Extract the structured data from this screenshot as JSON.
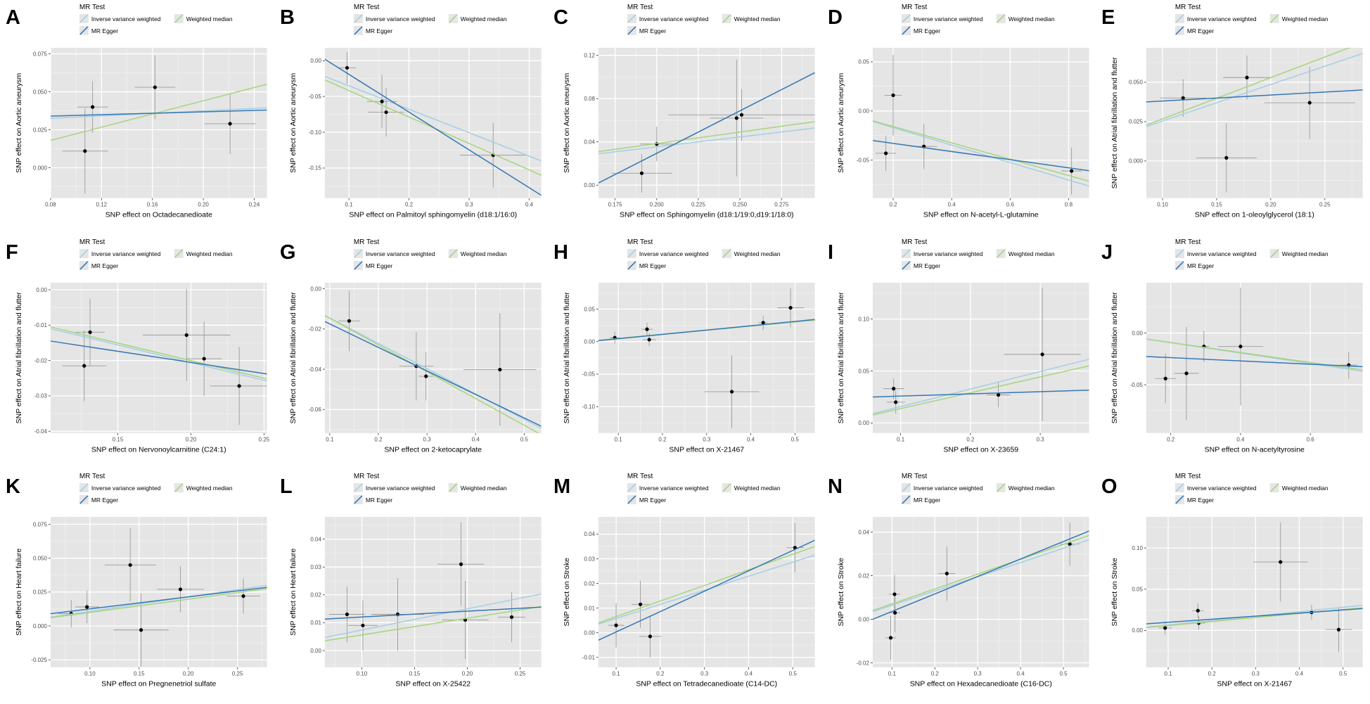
{
  "legend": {
    "title": "MR Test",
    "items": [
      {
        "key": "ivw",
        "label": "Inverse variance weighted"
      },
      {
        "key": "egger",
        "label": "MR Egger"
      },
      {
        "key": "wm",
        "label": "Weighted median"
      }
    ]
  },
  "colors": {
    "ivw": "#a6cee3",
    "egger": "#3377b5",
    "wm": "#a5d57c",
    "point": "#000000",
    "errorbar": "#9a9a9a",
    "panel_bg": "#e5e5e5",
    "grid_major": "#ffffff",
    "grid_minor": "#f2f2f2",
    "tick_text": "#4d4d4d",
    "axis_text": "#000000",
    "legend_key_bg": "#e5e5e5"
  },
  "chart_data": [
    {
      "panel": "A",
      "type": "scatter",
      "xlabel": "SNP effect on Octadecanedioate",
      "ylabel": "SNP effect on Aortic aneurysm",
      "xlim": [
        0.08,
        0.25
      ],
      "ylim": [
        -0.02,
        0.079
      ],
      "xticks": [
        "0.08",
        "0.12",
        "0.16",
        "0.20",
        "0.24"
      ],
      "yticks": [
        "0.000",
        "0.025",
        "0.050",
        "0.075"
      ],
      "points": [
        [
          0.107,
          0.011,
          0.018,
          0.028
        ],
        [
          0.113,
          0.04,
          0.012,
          0.017
        ],
        [
          0.162,
          0.053,
          0.016,
          0.021
        ],
        [
          0.221,
          0.029,
          0.02,
          0.02
        ]
      ],
      "lines": {
        "ivw": [
          0.0325,
          0.0395
        ],
        "egger": [
          0.034,
          0.038
        ],
        "wm": [
          0.018,
          0.055
        ]
      }
    },
    {
      "panel": "B",
      "type": "scatter",
      "xlabel": "SNP effect on Palmitoyl sphingomyelin (d18:1/16:0)",
      "ylabel": "SNP effect on Aortic aneurysm",
      "xlim": [
        0.06,
        0.42
      ],
      "ylim": [
        -0.192,
        0.018
      ],
      "xticks": [
        "0.1",
        "0.2",
        "0.3",
        "0.4"
      ],
      "yticks": [
        "0.00",
        "-0.05",
        "-0.10",
        "-0.15"
      ],
      "points": [
        [
          0.097,
          -0.01,
          0.015,
          0.022
        ],
        [
          0.155,
          -0.057,
          0.025,
          0.037
        ],
        [
          0.162,
          -0.072,
          0.03,
          0.034
        ],
        [
          0.34,
          -0.132,
          0.055,
          0.045
        ]
      ],
      "lines": {
        "ivw": [
          -0.022,
          -0.14
        ],
        "egger": [
          0.002,
          -0.188
        ],
        "wm": [
          -0.027,
          -0.16
        ]
      }
    },
    {
      "panel": "C",
      "type": "scatter",
      "xlabel": "SNP effect on Sphingomyelin (d18:1/19:0,d19:1/18:0)",
      "ylabel": "SNP effect on Aortic aneurysm",
      "xlim": [
        0.165,
        0.295
      ],
      "ylim": [
        -0.012,
        0.127
      ],
      "xticks": [
        "0.175",
        "0.200",
        "0.225",
        "0.250",
        "0.275"
      ],
      "yticks": [
        "0.00",
        "0.04",
        "0.08",
        "0.12"
      ],
      "points": [
        [
          0.191,
          0.011,
          0.018,
          0.018
        ],
        [
          0.2,
          0.038,
          0.01,
          0.016
        ],
        [
          0.248,
          0.062,
          0.016,
          0.054
        ],
        [
          0.251,
          0.065,
          0.044,
          0.024
        ]
      ],
      "lines": {
        "ivw": [
          0.029,
          0.0528
        ],
        "egger": [
          0.002,
          0.104
        ],
        "wm": [
          0.031,
          0.0587
        ]
      }
    },
    {
      "panel": "D",
      "type": "scatter",
      "xlabel": "SNP effect on N-acetyl-L-glutamine",
      "ylabel": "SNP effect on Aortic aneurysm",
      "xlim": [
        0.13,
        0.87
      ],
      "ylim": [
        -0.0886,
        0.0643
      ],
      "xticks": [
        "0.2",
        "0.4",
        "0.6",
        "0.8"
      ],
      "yticks": [
        "0.05",
        "0.00",
        "-0.05"
      ],
      "points": [
        [
          0.175,
          -0.043,
          0.035,
          0.018
        ],
        [
          0.2,
          0.016,
          0.03,
          0.041
        ],
        [
          0.305,
          -0.036,
          0.045,
          0.023
        ],
        [
          0.81,
          -0.061,
          0.035,
          0.024
        ]
      ],
      "lines": {
        "ivw": [
          -0.0107,
          -0.0764
        ],
        "egger": [
          -0.03,
          -0.0607
        ],
        "wm": [
          -0.01,
          -0.0714
        ]
      }
    },
    {
      "panel": "E",
      "type": "scatter",
      "xlabel": "SNP effect on 1-oleoylglycerol (18:1)",
      "ylabel": "SNP effect on Atrial fibrillation and flutter",
      "xlim": [
        0.085,
        0.285
      ],
      "ylim": [
        -0.0236,
        0.0719
      ],
      "xticks": [
        "0.10",
        "0.15",
        "0.20",
        "0.25"
      ],
      "yticks": [
        "0.000",
        "0.025",
        "0.050"
      ],
      "points": [
        [
          0.119,
          0.04,
          0.021,
          0.012
        ],
        [
          0.159,
          0.002,
          0.028,
          0.022
        ],
        [
          0.178,
          0.053,
          0.022,
          0.014
        ],
        [
          0.236,
          0.037,
          0.042,
          0.023
        ]
      ],
      "lines": {
        "ivw": [
          0.0219,
          0.0683
        ],
        "egger": [
          0.0375,
          0.0451
        ],
        "wm": [
          0.0228,
          0.0752
        ]
      }
    },
    {
      "panel": "F",
      "type": "scatter",
      "xlabel": "SNP effect on Nervonoylcarnitine (C24:1)",
      "ylabel": "SNP effect on Atrial fibrillation and flutter",
      "xlim": [
        0.104,
        0.252
      ],
      "ylim": [
        -0.0405,
        0.002
      ],
      "xticks": [
        "0.15",
        "0.20",
        "0.25"
      ],
      "yticks": [
        "0.00",
        "-0.01",
        "-0.02",
        "-0.03",
        "-0.04"
      ],
      "points": [
        [
          0.127,
          -0.0215,
          0.015,
          0.01
        ],
        [
          0.131,
          -0.012,
          0.01,
          0.0095
        ],
        [
          0.197,
          -0.0128,
          0.03,
          0.013
        ],
        [
          0.209,
          -0.0195,
          0.012,
          0.0105
        ],
        [
          0.233,
          -0.0272,
          0.02,
          0.011
        ]
      ],
      "lines": {
        "ivw": [
          -0.011,
          -0.0258
        ],
        "egger": [
          -0.0145,
          -0.0238
        ],
        "wm": [
          -0.0105,
          -0.0252
        ]
      }
    },
    {
      "panel": "G",
      "type": "scatter",
      "xlabel": "SNP effect on 2-ketocaprylate",
      "ylabel": "SNP effect on Atrial fibrillation and flutter",
      "xlim": [
        0.09,
        0.535
      ],
      "ylim": [
        -0.0717,
        0.003
      ],
      "xticks": [
        "0.1",
        "0.2",
        "0.3",
        "0.4",
        "0.5"
      ],
      "yticks": [
        "0.00",
        "-0.02",
        "-0.04",
        "-0.06"
      ],
      "points": [
        [
          0.14,
          -0.016,
          0.022,
          0.015
        ],
        [
          0.278,
          -0.0385,
          0.035,
          0.017
        ],
        [
          0.298,
          -0.0435,
          0.015,
          0.012
        ],
        [
          0.45,
          -0.0402,
          0.075,
          0.028
        ]
      ],
      "lines": {
        "ivw": [
          -0.0133,
          -0.0693
        ],
        "egger": [
          -0.0163,
          -0.0683
        ],
        "wm": [
          -0.0133,
          -0.0725
        ]
      }
    },
    {
      "panel": "H",
      "type": "scatter",
      "xlabel": "SNP effect on X-21467",
      "ylabel": "SNP effect on Atrial fibrillation and flutter",
      "xlim": [
        0.055,
        0.545
      ],
      "ylim": [
        -0.1406,
        0.0906
      ],
      "xticks": [
        "0.1",
        "0.2",
        "0.3",
        "0.4",
        "0.5"
      ],
      "yticks": [
        "0.05",
        "0.00",
        "-0.05",
        "-0.10"
      ],
      "points": [
        [
          0.092,
          0.006,
          0.012,
          0.009
        ],
        [
          0.165,
          0.019,
          0.013,
          0.01
        ],
        [
          0.17,
          0.003,
          0.015,
          0.01
        ],
        [
          0.357,
          -0.077,
          0.062,
          0.056
        ],
        [
          0.428,
          0.029,
          0.01,
          0.011
        ],
        [
          0.49,
          0.052,
          0.03,
          0.03
        ]
      ],
      "lines": {
        "ivw": [
          0.002,
          0.0335
        ],
        "egger": [
          0.0015,
          0.034
        ],
        "wm": [
          0.002,
          0.033
        ]
      }
    },
    {
      "panel": "I",
      "type": "scatter",
      "xlabel": "SNP effect on X-23659",
      "ylabel": "SNP effect on Atrial fibrillation and flutter",
      "xlim": [
        0.06,
        0.37
      ],
      "ylim": [
        -0.0097,
        0.135
      ],
      "xticks": [
        "0.1",
        "0.2",
        "0.3"
      ],
      "yticks": [
        "0.00",
        "0.05",
        "0.10"
      ],
      "points": [
        [
          0.09,
          0.033,
          0.015,
          0.01
        ],
        [
          0.093,
          0.02,
          0.013,
          0.011
        ],
        [
          0.24,
          0.027,
          0.017,
          0.012
        ],
        [
          0.303,
          0.066,
          0.055,
          0.064
        ]
      ],
      "lines": {
        "ivw": [
          0.009,
          0.0613
        ],
        "egger": [
          0.025,
          0.0316
        ],
        "wm": [
          0.0077,
          0.055
        ]
      }
    },
    {
      "panel": "J",
      "type": "scatter",
      "xlabel": "SNP effect on N-acetyltyrosine",
      "ylabel": "SNP effect on Atrial fibrillation and flutter",
      "xlim": [
        0.13,
        0.75
      ],
      "ylim": [
        -0.0967,
        0.0487
      ],
      "xticks": [
        "0.2",
        "0.4",
        "0.6"
      ],
      "yticks": [
        "0.00",
        "-0.05"
      ],
      "points": [
        [
          0.185,
          -0.044,
          0.03,
          0.024
        ],
        [
          0.245,
          -0.039,
          0.035,
          0.045
        ],
        [
          0.295,
          -0.013,
          0.015,
          0.015
        ],
        [
          0.4,
          -0.013,
          0.065,
          0.057
        ],
        [
          0.71,
          -0.031,
          0.025,
          0.013
        ]
      ],
      "lines": {
        "ivw": [
          -0.0058,
          -0.037
        ],
        "egger": [
          -0.0227,
          -0.0325
        ],
        "wm": [
          -0.0058,
          -0.0357
        ]
      }
    },
    {
      "panel": "K",
      "type": "scatter",
      "xlabel": "SNP effect on Pregnenetriol sulfate",
      "ylabel": "SNP effect on Heart failure",
      "xlim": [
        0.06,
        0.28
      ],
      "ylim": [
        -0.0305,
        0.0805
      ],
      "xticks": [
        "0.10",
        "0.15",
        "0.20",
        "0.25"
      ],
      "yticks": [
        "0.075",
        "0.050",
        "0.025",
        "0.000",
        "-0.025"
      ],
      "points": [
        [
          0.081,
          0.009,
          0.013,
          0.01
        ],
        [
          0.097,
          0.014,
          0.012,
          0.012
        ],
        [
          0.141,
          0.045,
          0.026,
          0.027
        ],
        [
          0.152,
          -0.003,
          0.028,
          0.027
        ],
        [
          0.192,
          0.027,
          0.024,
          0.017
        ],
        [
          0.256,
          0.022,
          0.017,
          0.013
        ]
      ],
      "lines": {
        "ivw": [
          0.0065,
          0.03
        ],
        "egger": [
          0.009,
          0.0285
        ],
        "wm": [
          0.006,
          0.0275
        ]
      }
    },
    {
      "panel": "L",
      "type": "scatter",
      "xlabel": "SNP effect on X-25422",
      "ylabel": "SNP effect on Heart failure",
      "xlim": [
        0.065,
        0.27
      ],
      "ylim": [
        -0.006,
        0.048
      ],
      "xticks": [
        "0.10",
        "0.15",
        "0.20",
        "0.25"
      ],
      "yticks": [
        "0.00",
        "0.01",
        "0.02",
        "0.03",
        "0.04"
      ],
      "points": [
        [
          0.086,
          0.013,
          0.017,
          0.01
        ],
        [
          0.101,
          0.009,
          0.014,
          0.009
        ],
        [
          0.134,
          0.013,
          0.025,
          0.013
        ],
        [
          0.194,
          0.031,
          0.022,
          0.015
        ],
        [
          0.198,
          0.011,
          0.022,
          0.014
        ],
        [
          0.242,
          0.012,
          0.013,
          0.009
        ]
      ],
      "lines": {
        "ivw": [
          0.0047,
          0.0203
        ],
        "egger": [
          0.0113,
          0.0156
        ],
        "wm": [
          0.0035,
          0.0158
        ]
      }
    },
    {
      "panel": "M",
      "type": "scatter",
      "xlabel": "SNP effect on Tetradecanedioate (C14-DC)",
      "ylabel": "SNP effect on Stroke",
      "xlim": [
        0.06,
        0.55
      ],
      "ylim": [
        -0.014,
        0.047
      ],
      "xticks": [
        "0.1",
        "0.2",
        "0.3",
        "0.4",
        "0.5"
      ],
      "yticks": [
        "-0.01",
        "0.00",
        "0.01",
        "0.02",
        "0.03",
        "0.04"
      ],
      "points": [
        [
          0.1,
          0.003,
          0.018,
          0.009
        ],
        [
          0.155,
          0.0115,
          0.02,
          0.0095
        ],
        [
          0.177,
          -0.0015,
          0.025,
          0.0085
        ],
        [
          0.505,
          0.0345,
          0.02,
          0.01
        ]
      ],
      "lines": {
        "ivw": [
          0.0035,
          0.0315
        ],
        "egger": [
          -0.003,
          0.0375
        ],
        "wm": [
          0.004,
          0.035
        ]
      }
    },
    {
      "panel": "N",
      "type": "scatter",
      "xlabel": "SNP effect on Hexadecanedioate (C16-DC)",
      "ylabel": "SNP effect on Stroke",
      "xlim": [
        0.055,
        0.56
      ],
      "ylim": [
        -0.022,
        0.047
      ],
      "xticks": [
        "0.1",
        "0.2",
        "0.3",
        "0.4",
        "0.5"
      ],
      "yticks": [
        "-0.02",
        "0.00",
        "0.02",
        "0.04"
      ],
      "points": [
        [
          0.097,
          -0.0085,
          0.012,
          0.01
        ],
        [
          0.106,
          0.0115,
          0.013,
          0.009
        ],
        [
          0.107,
          0.003,
          0.012,
          0.009
        ],
        [
          0.228,
          0.021,
          0.02,
          0.0125
        ],
        [
          0.515,
          0.0345,
          0.022,
          0.01
        ]
      ],
      "lines": {
        "ivw": [
          0.0035,
          0.0365
        ],
        "egger": [
          0.0,
          0.0405
        ],
        "wm": [
          0.004,
          0.0385
        ]
      }
    },
    {
      "panel": "O",
      "type": "scatter",
      "xlabel": "SNP effect on X-21467",
      "ylabel": "SNP effect on Stroke",
      "xlim": [
        0.05,
        0.545
      ],
      "ylim": [
        -0.0446,
        0.1377
      ],
      "xticks": [
        "0.1",
        "0.2",
        "0.3",
        "0.4",
        "0.5"
      ],
      "yticks": [
        "0.00",
        "0.05",
        "0.10"
      ],
      "points": [
        [
          0.093,
          0.003,
          0.015,
          0.008
        ],
        [
          0.168,
          0.024,
          0.013,
          0.009
        ],
        [
          0.17,
          0.009,
          0.015,
          0.008
        ],
        [
          0.357,
          0.083,
          0.062,
          0.048
        ],
        [
          0.428,
          0.022,
          0.01,
          0.009
        ],
        [
          0.49,
          0.001,
          0.03,
          0.027
        ]
      ],
      "lines": {
        "ivw": [
          0.004,
          0.0305
        ],
        "egger": [
          0.008,
          0.0265
        ],
        "wm": [
          0.0035,
          0.0275
        ]
      }
    }
  ]
}
